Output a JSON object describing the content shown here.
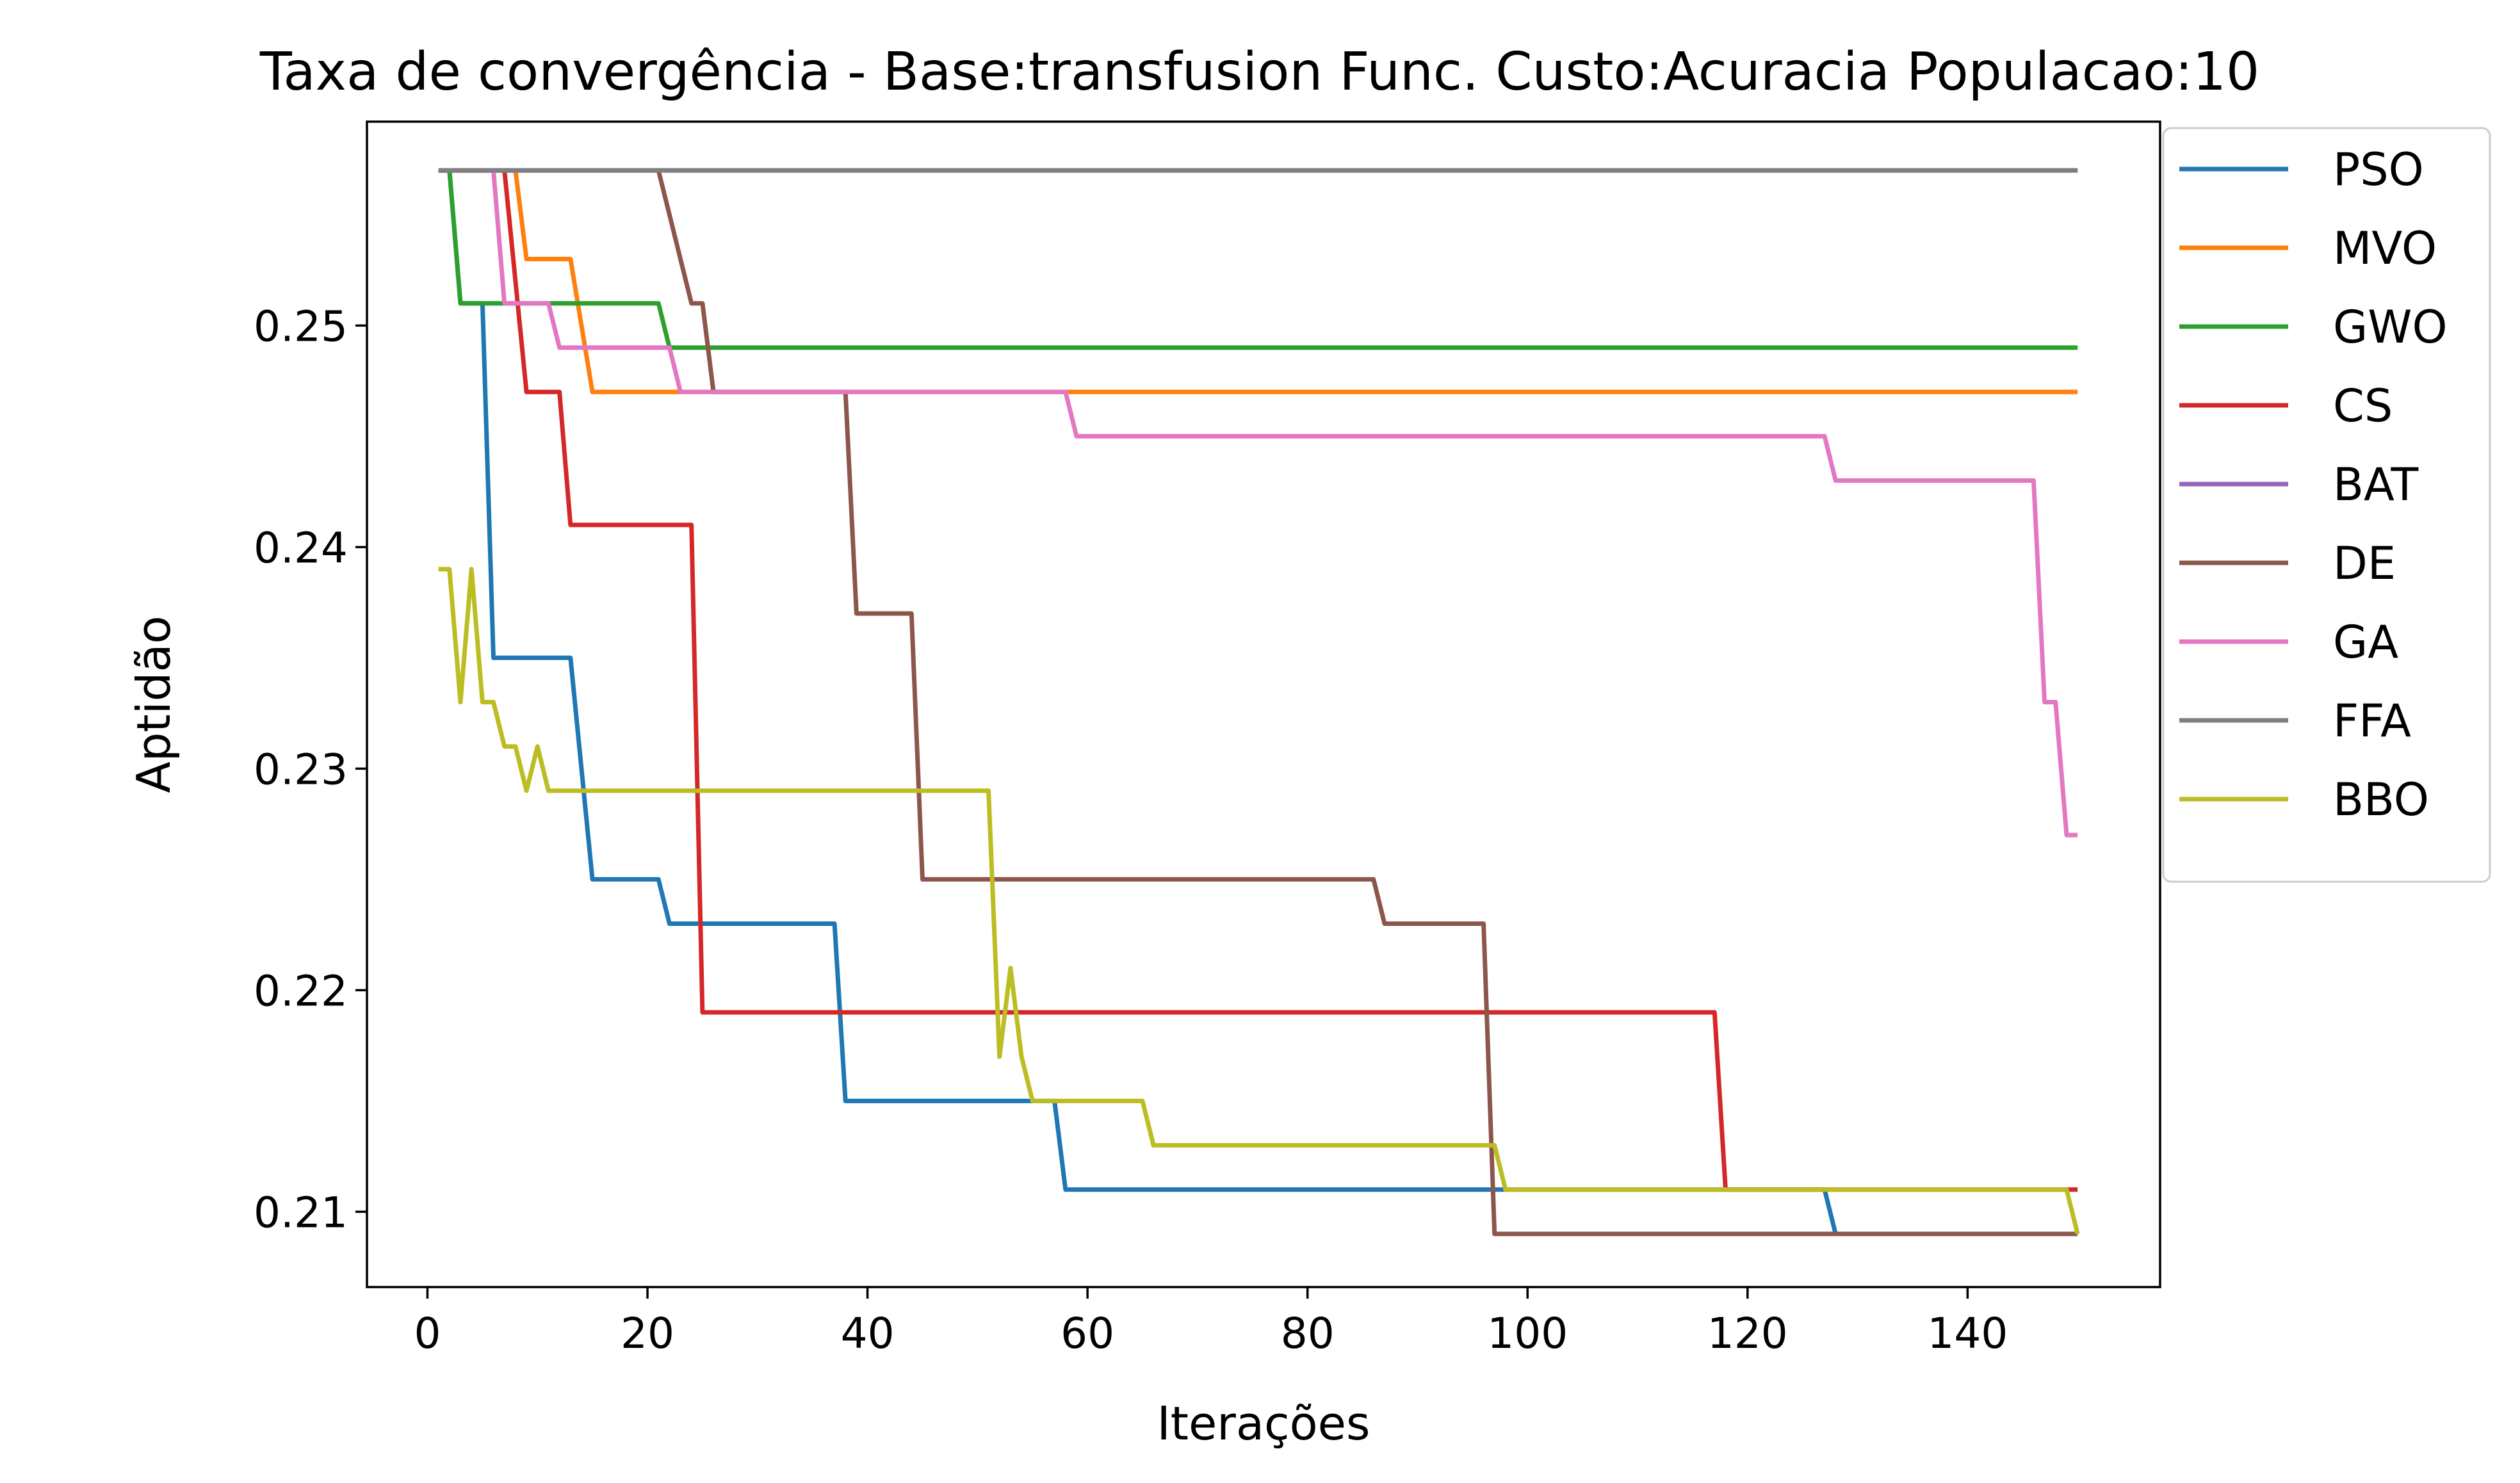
{
  "chart_data": {
    "type": "line",
    "title": "Taxa de convergência - Base:transfusion Func. Custo:Acuracia Populacao:10",
    "xlabel": "Iterações",
    "ylabel": "Aptidão",
    "xlim": [
      -5.5,
      157.5
    ],
    "ylim": [
      0.2066,
      0.2592
    ],
    "xticks": [
      0,
      20,
      40,
      60,
      80,
      100,
      120,
      140
    ],
    "yticks": [
      0.21,
      0.22,
      0.23,
      0.24,
      0.25
    ],
    "xtick_labels": [
      "0",
      "20",
      "40",
      "60",
      "80",
      "100",
      "120",
      "140"
    ],
    "ytick_labels": [
      "0.21",
      "0.22",
      "0.23",
      "0.24",
      "0.25"
    ],
    "grid": false,
    "legend_position": "outside-top-right",
    "series": [
      {
        "name": "PSO",
        "color": "#1f77b4",
        "x": [
          1,
          2,
          3,
          5,
          6,
          13,
          15,
          21,
          22,
          37,
          38,
          57,
          58,
          127,
          128,
          150
        ],
        "y": [
          0.257,
          0.257,
          0.251,
          0.251,
          0.235,
          0.235,
          0.225,
          0.225,
          0.223,
          0.223,
          0.215,
          0.215,
          0.211,
          0.211,
          0.209,
          0.209
        ]
      },
      {
        "name": "MVO",
        "color": "#ff7f0e",
        "x": [
          1,
          8,
          9,
          13,
          15,
          150
        ],
        "y": [
          0.257,
          0.257,
          0.253,
          0.253,
          0.247,
          0.247
        ]
      },
      {
        "name": "GWO",
        "color": "#2ca02c",
        "x": [
          1,
          2,
          3,
          21,
          22,
          150
        ],
        "y": [
          0.257,
          0.257,
          0.251,
          0.251,
          0.249,
          0.249
        ]
      },
      {
        "name": "CS",
        "color": "#d62728",
        "x": [
          1,
          7,
          9,
          12,
          13,
          24,
          25,
          117,
          118,
          150
        ],
        "y": [
          0.257,
          0.257,
          0.247,
          0.247,
          0.241,
          0.241,
          0.219,
          0.219,
          0.211,
          0.211
        ]
      },
      {
        "name": "BAT",
        "color": "#9467bd",
        "x": [
          1,
          150
        ],
        "y": [
          0.257,
          0.257
        ]
      },
      {
        "name": "DE",
        "color": "#8c564b",
        "x": [
          1,
          21,
          24,
          25,
          26,
          38,
          39,
          44,
          45,
          86,
          87,
          96,
          97,
          150
        ],
        "y": [
          0.257,
          0.257,
          0.251,
          0.251,
          0.247,
          0.247,
          0.237,
          0.237,
          0.225,
          0.225,
          0.223,
          0.223,
          0.209,
          0.209
        ]
      },
      {
        "name": "GA",
        "color": "#e377c2",
        "x": [
          1,
          6,
          7,
          11,
          12,
          22,
          23,
          58,
          59,
          127,
          128,
          146,
          147,
          148,
          149,
          150
        ],
        "y": [
          0.257,
          0.257,
          0.251,
          0.251,
          0.249,
          0.249,
          0.247,
          0.247,
          0.245,
          0.245,
          0.243,
          0.243,
          0.233,
          0.233,
          0.227,
          0.227
        ]
      },
      {
        "name": "FFA",
        "color": "#7f7f7f",
        "x": [
          1,
          150
        ],
        "y": [
          0.257,
          0.257
        ]
      },
      {
        "name": "BBO",
        "color": "#bcbd22",
        "x": [
          1,
          2,
          3,
          4,
          5,
          6,
          7,
          8,
          9,
          10,
          11,
          51,
          52,
          53,
          54,
          55,
          65,
          66,
          97,
          98,
          149,
          150
        ],
        "y": [
          0.239,
          0.239,
          0.233,
          0.239,
          0.233,
          0.233,
          0.231,
          0.231,
          0.229,
          0.231,
          0.229,
          0.229,
          0.217,
          0.221,
          0.217,
          0.215,
          0.215,
          0.213,
          0.213,
          0.211,
          0.211,
          0.209
        ]
      }
    ]
  }
}
